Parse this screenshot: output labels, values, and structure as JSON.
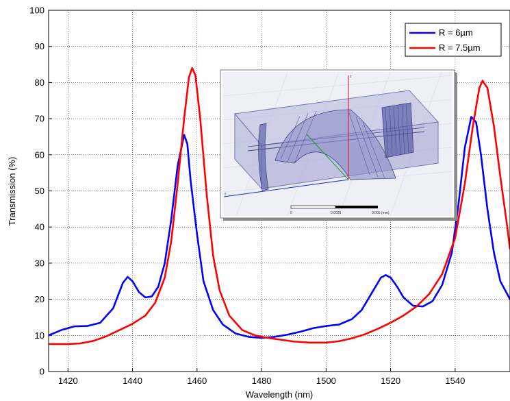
{
  "chart_data": {
    "type": "line",
    "xlabel": "Wavelength (nm)",
    "ylabel": "Transmission (%)",
    "xlim": [
      1414,
      1557
    ],
    "ylim": [
      0,
      100
    ],
    "xticks": [
      1420,
      1440,
      1460,
      1480,
      1500,
      1520,
      1540
    ],
    "yticks": [
      0,
      10,
      20,
      30,
      40,
      50,
      60,
      70,
      80,
      90,
      100
    ],
    "grid": true,
    "legend_position": "top-right",
    "series": [
      {
        "name": "R = 6µm",
        "color": "#0000ff",
        "points": [
          [
            1414,
            10
          ],
          [
            1418,
            11.5
          ],
          [
            1422,
            12.5
          ],
          [
            1426,
            12.6
          ],
          [
            1430,
            13.5
          ],
          [
            1434,
            17.5
          ],
          [
            1437,
            24.5
          ],
          [
            1438.5,
            26.2
          ],
          [
            1440,
            25
          ],
          [
            1442,
            22
          ],
          [
            1444,
            20.5
          ],
          [
            1446,
            20.8
          ],
          [
            1448,
            23.5
          ],
          [
            1450,
            30
          ],
          [
            1452,
            42
          ],
          [
            1454,
            57
          ],
          [
            1456,
            65.5
          ],
          [
            1457,
            63
          ],
          [
            1458,
            53
          ],
          [
            1460,
            38
          ],
          [
            1462,
            25
          ],
          [
            1465,
            17
          ],
          [
            1468,
            13
          ],
          [
            1472,
            10.5
          ],
          [
            1476,
            9.6
          ],
          [
            1480,
            9.3
          ],
          [
            1484,
            9.6
          ],
          [
            1488,
            10.2
          ],
          [
            1492,
            11
          ],
          [
            1496,
            12
          ],
          [
            1500,
            12.6
          ],
          [
            1504,
            13
          ],
          [
            1508,
            14.5
          ],
          [
            1511,
            17
          ],
          [
            1514,
            21.5
          ],
          [
            1517,
            26
          ],
          [
            1518.5,
            26.7
          ],
          [
            1520,
            26
          ],
          [
            1522,
            23.5
          ],
          [
            1524,
            20.5
          ],
          [
            1527,
            18.2
          ],
          [
            1530,
            18
          ],
          [
            1533,
            19.5
          ],
          [
            1536,
            24
          ],
          [
            1539,
            33
          ],
          [
            1541,
            46
          ],
          [
            1543,
            62
          ],
          [
            1545,
            70.5
          ],
          [
            1546.5,
            69
          ],
          [
            1548,
            60
          ],
          [
            1550,
            45
          ],
          [
            1552,
            33
          ],
          [
            1554,
            25
          ],
          [
            1557,
            20
          ]
        ]
      },
      {
        "name": "R = 7.5µm",
        "color": "#ff0000",
        "points": [
          [
            1414,
            7.6
          ],
          [
            1420,
            7.6
          ],
          [
            1424,
            7.8
          ],
          [
            1428,
            8.5
          ],
          [
            1432,
            9.8
          ],
          [
            1436,
            11.5
          ],
          [
            1440,
            13.2
          ],
          [
            1444,
            15.5
          ],
          [
            1447,
            19
          ],
          [
            1450,
            26
          ],
          [
            1452,
            36
          ],
          [
            1454,
            52
          ],
          [
            1456,
            70
          ],
          [
            1457.5,
            81.5
          ],
          [
            1458.5,
            84
          ],
          [
            1459.5,
            82
          ],
          [
            1461,
            70
          ],
          [
            1463,
            49
          ],
          [
            1465,
            32
          ],
          [
            1467,
            22.5
          ],
          [
            1470,
            15.5
          ],
          [
            1474,
            11.5
          ],
          [
            1478,
            10
          ],
          [
            1482,
            9.3
          ],
          [
            1486,
            8.8
          ],
          [
            1490,
            8.3
          ],
          [
            1495,
            8
          ],
          [
            1500,
            8
          ],
          [
            1504,
            8.4
          ],
          [
            1508,
            9.2
          ],
          [
            1512,
            10.3
          ],
          [
            1516,
            11.8
          ],
          [
            1520,
            13.5
          ],
          [
            1524,
            15.5
          ],
          [
            1528,
            18
          ],
          [
            1532,
            21.5
          ],
          [
            1536,
            27
          ],
          [
            1540,
            37
          ],
          [
            1543,
            52
          ],
          [
            1545.5,
            68
          ],
          [
            1547.5,
            78.5
          ],
          [
            1548.5,
            80.5
          ],
          [
            1550,
            78.5
          ],
          [
            1552,
            68
          ],
          [
            1554,
            54
          ],
          [
            1556,
            41
          ],
          [
            1557,
            34
          ]
        ]
      }
    ]
  },
  "inset": {
    "scale_labels": [
      "0",
      "0.0025",
      "0.005 (mm)"
    ],
    "axis_labels": [
      "z",
      "x"
    ]
  }
}
